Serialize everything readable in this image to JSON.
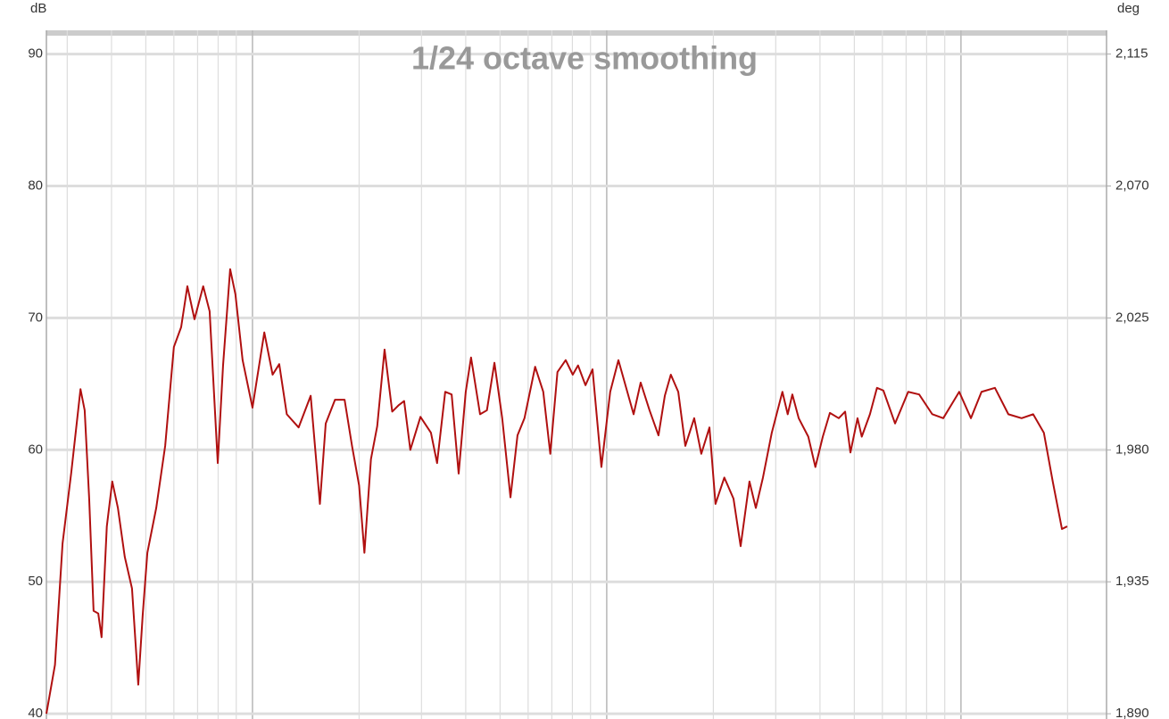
{
  "chart_data": {
    "type": "line",
    "title": "1/24 octave smoothing",
    "y_label": "dB",
    "y2_label": "deg",
    "log_x": true,
    "grid": true,
    "color": "#b01010",
    "xlim": [
      26.2,
      25760
    ],
    "xticks": [
      30,
      40,
      50,
      60,
      70,
      80,
      90,
      100,
      200,
      300,
      400,
      500,
      600,
      700,
      800,
      900,
      1000,
      2000,
      3000,
      4000,
      5000,
      6000,
      7000,
      8000,
      9000,
      10000,
      20000
    ],
    "ylim": [
      39.6,
      91.8
    ],
    "yticks": [
      40,
      50,
      60,
      70,
      80,
      90
    ],
    "y2lim": [
      1888.2,
      2123.1
    ],
    "y2ticks": [
      {
        "value": 1890,
        "label": "1,890"
      },
      {
        "value": 1935,
        "label": "1,935"
      },
      {
        "value": 1980,
        "label": "1,980"
      },
      {
        "value": 2025,
        "label": "2,025"
      },
      {
        "value": 2070,
        "label": "2,070"
      },
      {
        "value": 2115,
        "label": "2,115"
      }
    ],
    "x": [
      26.2,
      27.7,
      29.1,
      30.8,
      32.7,
      33.6,
      34.6,
      35.6,
      36.7,
      37.5,
      38.8,
      40.2,
      41.7,
      43.6,
      45.7,
      47.6,
      49.0,
      50.5,
      53.5,
      56.7,
      60.0,
      62.9,
      65.5,
      68.6,
      72.6,
      75.7,
      79.8,
      82.6,
      86.5,
      89.5,
      93.8,
      100,
      108,
      114,
      119,
      125,
      135,
      146,
      155,
      161,
      171,
      182,
      191,
      200,
      207,
      216,
      225,
      236,
      248,
      259,
      268,
      279,
      298,
      319,
      332,
      350,
      365,
      382,
      400,
      414,
      439,
      459,
      482,
      507,
      535,
      560,
      586,
      628,
      662,
      693,
      726,
      766,
      802,
      830,
      871,
      912,
      966,
      1023,
      1079,
      1191,
      1247,
      1321,
      1400,
      1459,
      1517,
      1592,
      1667,
      1766,
      1849,
      1950,
      2028,
      2148,
      2280,
      2388,
      2529,
      2636,
      2761,
      2924,
      3133,
      3243,
      3342,
      3483,
      3707,
      3882,
      4074,
      4266,
      4519,
      4710,
      4875,
      5105,
      5248,
      5534,
      5794,
      6039,
      6516,
      7096,
      7621,
      8299,
      8913,
      9886,
      10670,
      11430,
      12470,
      13610,
      14830,
      15990,
      17140,
      18160,
      19280,
      19950
    ],
    "values": [
      40,
      43.7,
      52.9,
      58.3,
      64.6,
      63.0,
      56.3,
      47.8,
      47.6,
      45.8,
      54.2,
      57.6,
      55.6,
      51.9,
      49.5,
      42.2,
      47.5,
      52.2,
      55.6,
      60.3,
      67.8,
      69.3,
      72.4,
      69.9,
      72.4,
      70.5,
      59.0,
      66.4,
      73.7,
      71.8,
      66.8,
      63.2,
      68.9,
      65.7,
      66.5,
      62.7,
      61.7,
      64.1,
      55.9,
      62.0,
      63.8,
      63.8,
      60.3,
      57.3,
      52.2,
      59.3,
      61.8,
      67.6,
      62.9,
      63.4,
      63.7,
      60.0,
      62.5,
      61.3,
      59.0,
      64.4,
      64.2,
      58.2,
      64.4,
      67.0,
      62.7,
      63.0,
      66.6,
      62.4,
      56.4,
      61.1,
      62.4,
      66.3,
      64.4,
      59.7,
      65.9,
      66.8,
      65.7,
      66.4,
      64.9,
      66.1,
      58.7,
      64.4,
      66.8,
      62.7,
      65.1,
      63.0,
      61.1,
      64.1,
      65.7,
      64.4,
      60.3,
      62.4,
      59.7,
      61.7,
      55.9,
      57.9,
      56.3,
      52.7,
      57.6,
      55.6,
      57.9,
      61.3,
      64.4,
      62.7,
      64.2,
      62.4,
      61.0,
      58.7,
      61.0,
      62.8,
      62.4,
      62.9,
      59.8,
      62.4,
      61.0,
      62.7,
      64.7,
      64.5,
      62.0,
      64.4,
      64.2,
      62.7,
      62.4,
      64.4,
      62.4,
      64.4,
      64.7,
      62.7,
      62.4,
      62.7,
      61.3,
      57.6,
      54.0,
      54.2
    ]
  }
}
